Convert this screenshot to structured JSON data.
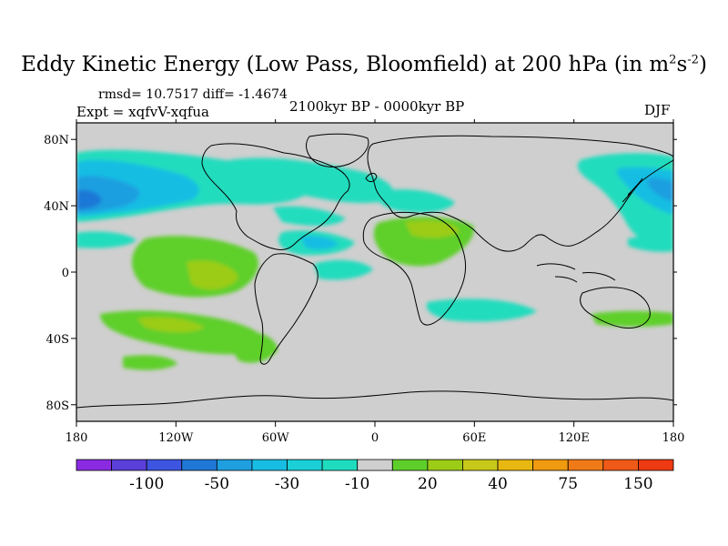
{
  "header": {
    "title_main": "Eddy Kinetic Energy (Low Pass, Bloomfield) at 200 hPa (in m",
    "title_sup1": "2",
    "title_mid": "s",
    "title_sup2": "-2",
    "title_end": ")",
    "stats": "rmsd= 10.7517 diff= -1.4674",
    "experiment": "Expt = xqfvV-xqfua",
    "period": "2100kyr BP - 0000kyr BP",
    "season": "DJF"
  },
  "chart_data": {
    "type": "heatmap",
    "title": "Eddy Kinetic Energy (Low Pass, Bloomfield) at 200 hPa (in m2s-2)",
    "x_ticks": [
      "180",
      "120W",
      "60W",
      "0",
      "60E",
      "120E",
      "180"
    ],
    "x_range": [
      -180,
      180
    ],
    "y_ticks": [
      "80N",
      "40N",
      "0",
      "40S",
      "80S"
    ],
    "y_range": [
      -90,
      90
    ],
    "colorbar": {
      "colors": [
        "#8a2be2",
        "#5a3fd8",
        "#3d55e0",
        "#1f78d6",
        "#1f9fe0",
        "#17bde3",
        "#1acfd6",
        "#20dcbe",
        "#cfcfcf",
        "#5ecf2a",
        "#9ccc18",
        "#c8c81a",
        "#e8b812",
        "#f09a10",
        "#f07a18",
        "#f05a18",
        "#ee3a12"
      ],
      "labels": [
        "-100",
        "-50",
        "-30",
        "-10",
        "20",
        "40",
        "75",
        "150"
      ]
    },
    "features": [
      {
        "name": "N Pacific negative core",
        "lon": -160,
        "lat": 42,
        "value": -40
      },
      {
        "name": "N Atlantic negative band",
        "lon": -30,
        "lat": 45,
        "value": -15
      },
      {
        "name": "Tropical Pacific positive",
        "lon": -100,
        "lat": 15,
        "value": 25
      },
      {
        "name": "S Pacific positive",
        "lon": -110,
        "lat": -30,
        "value": 25
      },
      {
        "name": "Africa positive",
        "lon": 20,
        "lat": 18,
        "value": 25
      },
      {
        "name": "W Pacific negative",
        "lon": 170,
        "lat": 45,
        "value": -25
      }
    ]
  }
}
